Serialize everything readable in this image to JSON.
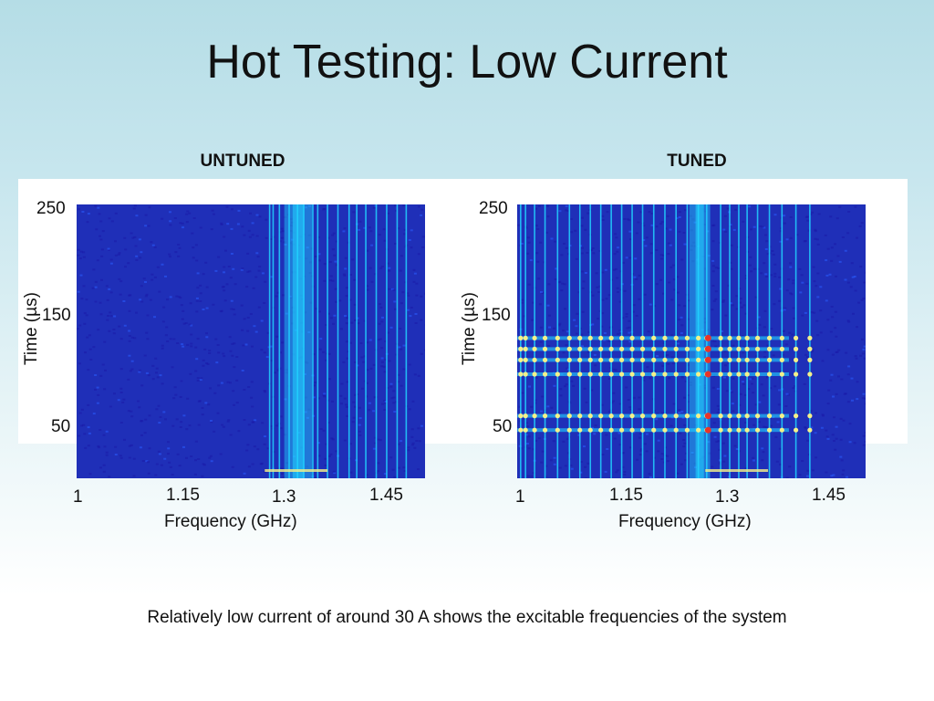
{
  "slide": {
    "title": "Hot Testing: Low Current",
    "caption": "Relatively low current of around 30 A shows the excitable frequencies of the system"
  },
  "chart_data": [
    {
      "type": "heatmap",
      "title": "UNTUNED",
      "xlabel": "Frequency (GHz)",
      "ylabel": "Time (µs)",
      "x_ticks": [
        "1",
        "1.15",
        "1.3",
        "1.45"
      ],
      "y_ticks": [
        "250",
        "150",
        "50"
      ],
      "xlim": [
        1.0,
        1.5
      ],
      "ylim": [
        0,
        250
      ],
      "colormap": [
        "#1a1aa8",
        "#2a5cff",
        "#22d3ff",
        "#f5f08a",
        "#e8342a"
      ],
      "background_color": "#1f2fb8",
      "lines_ghz": [
        1.277,
        1.282,
        1.291,
        1.305,
        1.317,
        1.326,
        1.339,
        1.346,
        1.36,
        1.375,
        1.391,
        1.402,
        1.415,
        1.43,
        1.445,
        1.46,
        1.473
      ],
      "band": {
        "center_ghz": 1.318,
        "width_ghz": 0.04,
        "y_start": 0,
        "y_end": 250
      }
    },
    {
      "type": "heatmap",
      "title": "TUNED",
      "xlabel": "Frequency (GHz)",
      "ylabel": "Time (µs)",
      "x_ticks": [
        "1",
        "1.15",
        "1.3",
        "1.45"
      ],
      "y_ticks": [
        "250",
        "150",
        "50"
      ],
      "xlim": [
        1.0,
        1.5
      ],
      "ylim": [
        0,
        250
      ],
      "colormap": [
        "#1a1aa8",
        "#2a5cff",
        "#22d3ff",
        "#f5f08a",
        "#e8342a"
      ],
      "background_color": "#1f2fb8",
      "lines_ghz": [
        1.005,
        1.012,
        1.025,
        1.04,
        1.058,
        1.075,
        1.09,
        1.105,
        1.12,
        1.135,
        1.15,
        1.165,
        1.18,
        1.196,
        1.212,
        1.228,
        1.244,
        1.26,
        1.272,
        1.292,
        1.305,
        1.318,
        1.33,
        1.345,
        1.362,
        1.38,
        1.4,
        1.42
      ],
      "bursts_time": [
        128,
        118,
        108,
        95,
        57,
        44
      ],
      "band": {
        "center_ghz": 1.262,
        "width_ghz": 0.03,
        "y_start": 0,
        "y_end": 250
      }
    }
  ]
}
